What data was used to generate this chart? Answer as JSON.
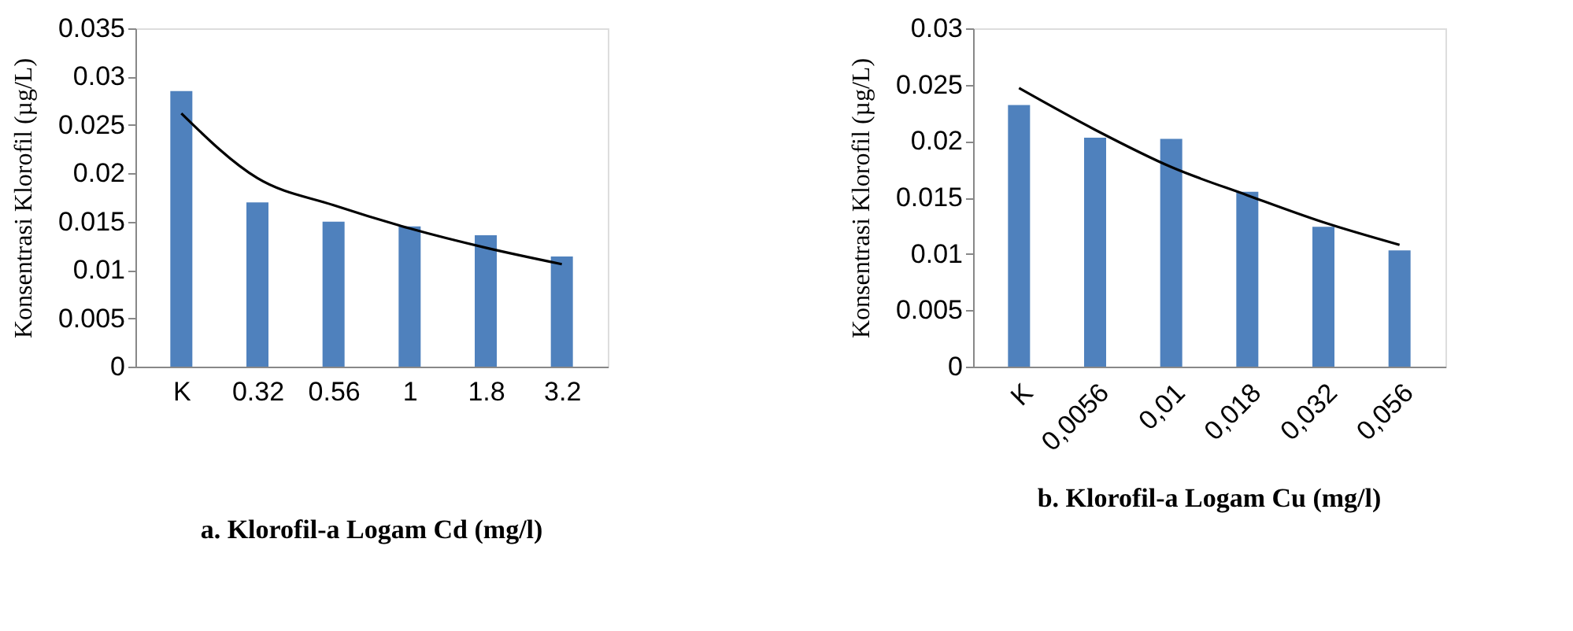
{
  "chart_data": [
    {
      "type": "bar",
      "title": "a. Klorofil-a  Logam Cd (mg/l)",
      "ylabel": "Konsentrasi Klorofil (µg/L)",
      "categories": [
        "K",
        "0.32",
        "0.56",
        "1",
        "1.8",
        "3.2"
      ],
      "ylim": [
        0,
        0.035
      ],
      "yticks": [
        0,
        0.005,
        0.01,
        0.015,
        0.02,
        0.025,
        0.03,
        0.035
      ],
      "grid": false,
      "series": [
        {
          "color": "#4f81bd",
          "values": [
            0.0285,
            0.017,
            0.015,
            0.0145,
            0.0136,
            0.0114
          ]
        },
        {
          "type": "line",
          "color": "#000000",
          "values": [
            0.0262,
            0.0195,
            0.0167,
            0.0143,
            0.0123,
            0.0106
          ]
        }
      ]
    },
    {
      "type": "bar",
      "title": "b. Klorofil-a  Logam Cu (mg/l)",
      "ylabel": "Konsentrasi Klorofil (µg/L)",
      "categories": [
        "K",
        "0,0056",
        "0,01",
        "0,018",
        "0,032",
        "0,056"
      ],
      "ylim": [
        0,
        0.03
      ],
      "yticks": [
        0,
        0.005,
        0.01,
        0.015,
        0.02,
        0.025,
        0.03
      ],
      "grid": false,
      "series": [
        {
          "color": "#4f81bd",
          "values": [
            0.0232,
            0.0203,
            0.0202,
            0.0155,
            0.0124,
            0.0103
          ]
        },
        {
          "type": "line",
          "color": "#000000",
          "values": [
            0.0247,
            0.021,
            0.0177,
            0.0152,
            0.0128,
            0.0108
          ]
        }
      ]
    }
  ]
}
